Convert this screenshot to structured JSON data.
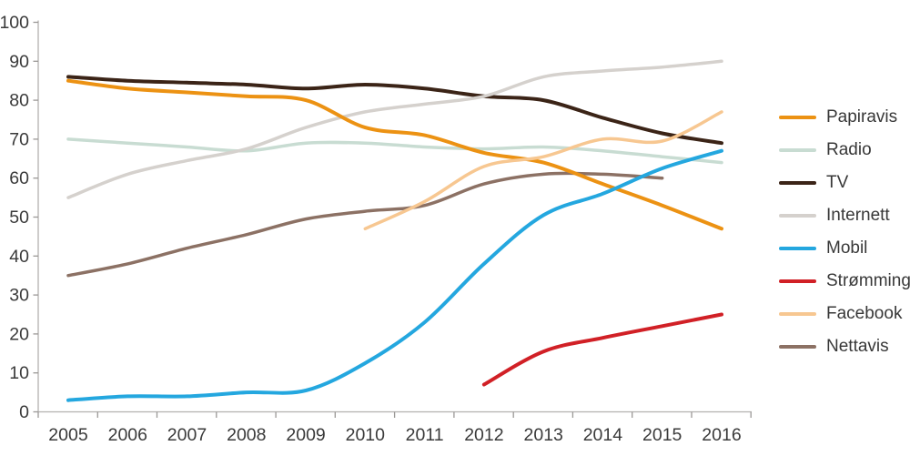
{
  "chart_data": {
    "type": "line",
    "title": "",
    "xlabel": "",
    "ylabel": "",
    "categories": [
      2005,
      2006,
      2007,
      2008,
      2009,
      2010,
      2011,
      2012,
      2013,
      2014,
      2015,
      2016
    ],
    "yticks": [
      0,
      10,
      20,
      30,
      40,
      50,
      60,
      70,
      80,
      90,
      100
    ],
    "ylim": [
      0,
      100
    ],
    "grid": false,
    "legend_position": "right",
    "axis_color": "#b3b1af",
    "tick_color": "#9a9896",
    "label_color": "#3a3a3a",
    "series": [
      {
        "name": "Papiravis",
        "color": "#EC9213",
        "width": 4,
        "values": [
          85,
          83,
          82,
          81,
          80,
          73,
          71,
          66.5,
          64,
          58.5,
          53,
          47
        ]
      },
      {
        "name": "Radio",
        "color": "#C8DCD2",
        "width": 3.5,
        "values": [
          70,
          69,
          68,
          67,
          69,
          69,
          68,
          67.5,
          68,
          67,
          65.5,
          64
        ]
      },
      {
        "name": "TV",
        "color": "#3B2417",
        "width": 4,
        "values": [
          86,
          85,
          84.5,
          84,
          83,
          84,
          83,
          81,
          80,
          75.5,
          71.5,
          69
        ]
      },
      {
        "name": "Internett",
        "color": "#D5D1CD",
        "width": 3.5,
        "values": [
          55,
          61,
          64.5,
          67.5,
          73,
          77,
          79,
          81,
          86,
          87.5,
          88.5,
          90
        ]
      },
      {
        "name": "Mobil",
        "color": "#24A7DF",
        "width": 4,
        "values": [
          3,
          4,
          4,
          5,
          5.5,
          12.5,
          23,
          38,
          50.5,
          56,
          62.5,
          67
        ]
      },
      {
        "name": "Strømming",
        "color": "#D12026",
        "width": 4,
        "values": [
          null,
          null,
          null,
          null,
          null,
          null,
          null,
          7,
          15.5,
          19,
          22,
          25
        ]
      },
      {
        "name": "Facebook",
        "color": "#F7C791",
        "width": 3.5,
        "values": [
          null,
          null,
          null,
          null,
          null,
          47,
          54,
          63,
          65.5,
          70,
          69.5,
          77
        ]
      },
      {
        "name": "Nettavis",
        "color": "#8C7164",
        "width": 3.5,
        "values": [
          35,
          38,
          42,
          45.5,
          49.5,
          51.5,
          53,
          58.5,
          61,
          61,
          60,
          null
        ]
      }
    ]
  }
}
